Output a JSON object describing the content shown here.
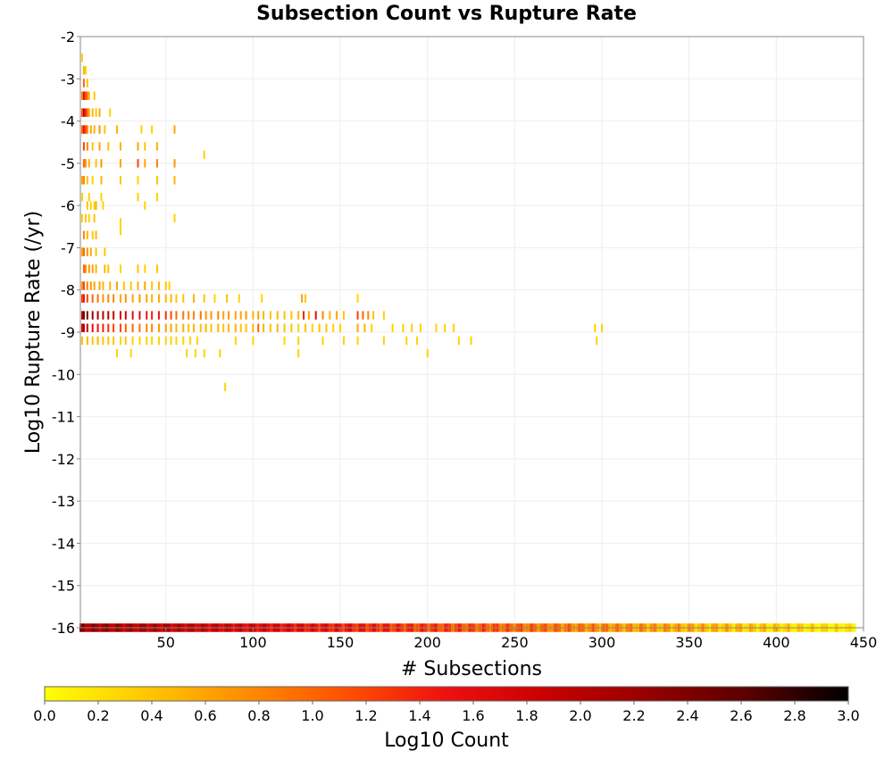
{
  "chart_data": {
    "type": "heatmap",
    "title": "Subsection Count vs Rupture Rate",
    "xlabel": "# Subsections",
    "ylabel": "Log10 Rupture Rate (/yr)",
    "xlim": [
      1,
      450
    ],
    "ylim": [
      -16,
      -2
    ],
    "x_ticks": [
      "50",
      "100",
      "150",
      "200",
      "250",
      "300",
      "350",
      "400",
      "450"
    ],
    "y_ticks": [
      "-2",
      "-3",
      "-4",
      "-5",
      "-6",
      "-7",
      "-8",
      "-9",
      "-10",
      "-11",
      "-12",
      "-13",
      "-14",
      "-15",
      "-16"
    ],
    "grid": true,
    "colorbar": {
      "label": "Log10 Count",
      "min": 0.0,
      "max": 3.0,
      "ticks": [
        "0.0",
        "0.2",
        "0.4",
        "0.6",
        "0.8",
        "1.0",
        "1.2",
        "1.4",
        "1.6",
        "1.8",
        "2.0",
        "2.2",
        "2.4",
        "2.6",
        "2.8",
        "3.0"
      ],
      "colors": [
        "#ffff00",
        "#ffc800",
        "#ff8c00",
        "#ff5000",
        "#ee1010",
        "#c80000",
        "#960000",
        "#5a0000",
        "#000000"
      ]
    },
    "bin_width": 1,
    "bin_height": 0.2,
    "cells": [
      [
        2,
        -2.5,
        0.3
      ],
      [
        3,
        -2.8,
        0.5
      ],
      [
        4,
        -2.8,
        0.3
      ],
      [
        3,
        -3.1,
        1.0
      ],
      [
        5,
        -3.1,
        0.4
      ],
      [
        2,
        -3.4,
        0.8
      ],
      [
        3,
        -3.4,
        1.6
      ],
      [
        4,
        -3.4,
        1.2
      ],
      [
        5,
        -3.4,
        0.9
      ],
      [
        6,
        -3.4,
        0.5
      ],
      [
        9,
        -3.4,
        0.4
      ],
      [
        2,
        -3.8,
        1.1
      ],
      [
        3,
        -3.8,
        1.9
      ],
      [
        4,
        -3.8,
        1.4
      ],
      [
        5,
        -3.8,
        1.0
      ],
      [
        6,
        -3.8,
        0.6
      ],
      [
        8,
        -3.8,
        0.5
      ],
      [
        10,
        -3.8,
        0.4
      ],
      [
        12,
        -3.8,
        0.6
      ],
      [
        18,
        -3.8,
        0.3
      ],
      [
        2,
        -4.2,
        1.0
      ],
      [
        3,
        -4.2,
        1.5
      ],
      [
        4,
        -4.2,
        1.2
      ],
      [
        5,
        -4.2,
        0.8
      ],
      [
        7,
        -4.2,
        0.6
      ],
      [
        9,
        -4.2,
        0.5
      ],
      [
        12,
        -4.2,
        0.7
      ],
      [
        15,
        -4.2,
        0.4
      ],
      [
        22,
        -4.2,
        0.5
      ],
      [
        36,
        -4.2,
        0.3
      ],
      [
        42,
        -4.2,
        0.3
      ],
      [
        55,
        -4.2,
        0.6
      ],
      [
        3,
        -4.6,
        1.2
      ],
      [
        5,
        -4.6,
        0.8
      ],
      [
        8,
        -4.6,
        0.4
      ],
      [
        12,
        -4.6,
        0.6
      ],
      [
        17,
        -4.6,
        0.4
      ],
      [
        24,
        -4.6,
        0.5
      ],
      [
        34,
        -4.6,
        0.6
      ],
      [
        38,
        -4.6,
        0.4
      ],
      [
        45,
        -4.6,
        0.5
      ],
      [
        3,
        -5.0,
        1.0
      ],
      [
        4,
        -5.0,
        0.7
      ],
      [
        6,
        -5.0,
        0.5
      ],
      [
        10,
        -5.0,
        0.4
      ],
      [
        13,
        -5.0,
        0.7
      ],
      [
        24,
        -5.0,
        0.6
      ],
      [
        34,
        -5.0,
        1.2
      ],
      [
        38,
        -5.0,
        0.6
      ],
      [
        45,
        -5.0,
        0.8
      ],
      [
        55,
        -5.0,
        0.7
      ],
      [
        72,
        -4.8,
        0.3
      ],
      [
        2,
        -5.4,
        0.6
      ],
      [
        3,
        -5.4,
        0.8
      ],
      [
        5,
        -5.4,
        0.4
      ],
      [
        8,
        -5.4,
        0.3
      ],
      [
        13,
        -5.4,
        0.5
      ],
      [
        24,
        -5.4,
        0.4
      ],
      [
        34,
        -5.4,
        0.3
      ],
      [
        45,
        -5.4,
        0.4
      ],
      [
        55,
        -5.4,
        0.5
      ],
      [
        2,
        -5.8,
        0.3
      ],
      [
        6,
        -5.8,
        0.3
      ],
      [
        13,
        -5.8,
        0.3
      ],
      [
        34,
        -5.8,
        0.3
      ],
      [
        45,
        -5.8,
        0.3
      ],
      [
        5,
        -6.0,
        0.4
      ],
      [
        7,
        -6.0,
        0.3
      ],
      [
        9,
        -6.0,
        0.3
      ],
      [
        10,
        -6.0,
        0.5
      ],
      [
        14,
        -6.0,
        0.3
      ],
      [
        38,
        -6.0,
        0.3
      ],
      [
        2,
        -6.3,
        0.3
      ],
      [
        4,
        -6.3,
        0.4
      ],
      [
        6,
        -6.3,
        0.3
      ],
      [
        9,
        -6.3,
        0.4
      ],
      [
        24,
        -6.4,
        0.3
      ],
      [
        55,
        -6.3,
        0.3
      ],
      [
        3,
        -6.7,
        0.8
      ],
      [
        5,
        -6.7,
        0.5
      ],
      [
        8,
        -6.7,
        0.4
      ],
      [
        10,
        -6.7,
        0.5
      ],
      [
        24,
        -6.6,
        0.3
      ],
      [
        2,
        -7.1,
        0.6
      ],
      [
        3,
        -7.1,
        1.0
      ],
      [
        5,
        -7.1,
        0.7
      ],
      [
        7,
        -7.1,
        0.6
      ],
      [
        10,
        -7.1,
        0.4
      ],
      [
        15,
        -7.1,
        0.4
      ],
      [
        3,
        -7.5,
        1.0
      ],
      [
        4,
        -7.5,
        0.8
      ],
      [
        6,
        -7.5,
        0.7
      ],
      [
        8,
        -7.5,
        0.6
      ],
      [
        10,
        -7.5,
        0.5
      ],
      [
        15,
        -7.5,
        0.5
      ],
      [
        17,
        -7.5,
        0.4
      ],
      [
        24,
        -7.5,
        0.3
      ],
      [
        34,
        -7.5,
        0.4
      ],
      [
        38,
        -7.5,
        0.3
      ],
      [
        45,
        -7.5,
        0.4
      ],
      [
        2,
        -7.9,
        0.7
      ],
      [
        3,
        -7.9,
        1.2
      ],
      [
        5,
        -7.9,
        0.8
      ],
      [
        7,
        -7.9,
        0.7
      ],
      [
        9,
        -7.9,
        0.6
      ],
      [
        12,
        -7.9,
        0.6
      ],
      [
        14,
        -7.9,
        0.5
      ],
      [
        18,
        -7.9,
        0.5
      ],
      [
        22,
        -7.9,
        0.6
      ],
      [
        26,
        -7.9,
        0.4
      ],
      [
        30,
        -7.9,
        0.4
      ],
      [
        34,
        -7.9,
        0.5
      ],
      [
        38,
        -7.9,
        0.6
      ],
      [
        42,
        -7.9,
        0.4
      ],
      [
        46,
        -7.9,
        0.5
      ],
      [
        50,
        -7.9,
        0.4
      ],
      [
        52,
        -7.9,
        0.3
      ],
      [
        2,
        -8.2,
        1.2
      ],
      [
        3,
        -8.2,
        1.5
      ],
      [
        5,
        -8.2,
        1.2
      ],
      [
        8,
        -8.2,
        1.0
      ],
      [
        11,
        -8.2,
        0.9
      ],
      [
        14,
        -8.2,
        0.7
      ],
      [
        17,
        -8.2,
        0.8
      ],
      [
        20,
        -8.2,
        0.8
      ],
      [
        24,
        -8.2,
        0.6
      ],
      [
        27,
        -8.2,
        0.7
      ],
      [
        31,
        -8.2,
        0.6
      ],
      [
        35,
        -8.2,
        0.7
      ],
      [
        39,
        -8.2,
        0.6
      ],
      [
        42,
        -8.2,
        0.5
      ],
      [
        46,
        -8.2,
        0.6
      ],
      [
        50,
        -8.2,
        0.5
      ],
      [
        53,
        -8.2,
        0.5
      ],
      [
        56,
        -8.2,
        0.4
      ],
      [
        60,
        -8.2,
        0.4
      ],
      [
        66,
        -8.2,
        0.5
      ],
      [
        72,
        -8.2,
        0.4
      ],
      [
        78,
        -8.2,
        0.3
      ],
      [
        85,
        -8.2,
        0.4
      ],
      [
        92,
        -8.2,
        0.3
      ],
      [
        105,
        -8.2,
        0.3
      ],
      [
        128,
        -8.2,
        0.6
      ],
      [
        130,
        -8.2,
        0.4
      ],
      [
        160,
        -8.2,
        0.3
      ],
      [
        2,
        -8.6,
        2.0
      ],
      [
        3,
        -8.6,
        2.6
      ],
      [
        5,
        -8.6,
        2.4
      ],
      [
        8,
        -8.6,
        2.2
      ],
      [
        11,
        -8.6,
        2.1
      ],
      [
        14,
        -8.6,
        2.0
      ],
      [
        17,
        -8.6,
        2.0
      ],
      [
        20,
        -8.6,
        1.9
      ],
      [
        24,
        -8.6,
        1.8
      ],
      [
        27,
        -8.6,
        1.8
      ],
      [
        31,
        -8.6,
        1.6
      ],
      [
        35,
        -8.6,
        1.6
      ],
      [
        39,
        -8.6,
        1.5
      ],
      [
        42,
        -8.6,
        1.4
      ],
      [
        46,
        -8.6,
        1.5
      ],
      [
        50,
        -8.6,
        1.3
      ],
      [
        53,
        -8.6,
        1.2
      ],
      [
        56,
        -8.6,
        1.0
      ],
      [
        60,
        -8.6,
        0.9
      ],
      [
        63,
        -8.6,
        0.8
      ],
      [
        66,
        -8.6,
        0.8
      ],
      [
        70,
        -8.6,
        0.9
      ],
      [
        73,
        -8.6,
        0.7
      ],
      [
        76,
        -8.6,
        0.7
      ],
      [
        80,
        -8.6,
        0.8
      ],
      [
        83,
        -8.6,
        0.6
      ],
      [
        86,
        -8.6,
        0.7
      ],
      [
        90,
        -8.6,
        0.6
      ],
      [
        93,
        -8.6,
        0.6
      ],
      [
        96,
        -8.6,
        0.7
      ],
      [
        100,
        -8.6,
        0.5
      ],
      [
        103,
        -8.6,
        0.6
      ],
      [
        106,
        -8.6,
        0.5
      ],
      [
        110,
        -8.6,
        0.4
      ],
      [
        114,
        -8.6,
        0.5
      ],
      [
        118,
        -8.6,
        0.4
      ],
      [
        122,
        -8.6,
        0.4
      ],
      [
        126,
        -8.6,
        0.5
      ],
      [
        129,
        -8.6,
        1.4
      ],
      [
        132,
        -8.6,
        0.6
      ],
      [
        136,
        -8.6,
        1.6
      ],
      [
        140,
        -8.6,
        0.8
      ],
      [
        144,
        -8.6,
        0.5
      ],
      [
        148,
        -8.6,
        0.6
      ],
      [
        152,
        -8.6,
        0.4
      ],
      [
        160,
        -8.6,
        1.2
      ],
      [
        163,
        -8.6,
        1.0
      ],
      [
        166,
        -8.6,
        0.8
      ],
      [
        169,
        -8.6,
        0.4
      ],
      [
        175,
        -8.6,
        0.3
      ],
      [
        2,
        -8.9,
        1.8
      ],
      [
        3,
        -8.9,
        2.0
      ],
      [
        5,
        -8.9,
        1.8
      ],
      [
        8,
        -8.9,
        1.6
      ],
      [
        11,
        -8.9,
        1.5
      ],
      [
        14,
        -8.9,
        1.4
      ],
      [
        17,
        -8.9,
        1.3
      ],
      [
        20,
        -8.9,
        1.2
      ],
      [
        24,
        -8.9,
        1.2
      ],
      [
        27,
        -8.9,
        1.0
      ],
      [
        31,
        -8.9,
        1.0
      ],
      [
        35,
        -8.9,
        0.9
      ],
      [
        39,
        -8.9,
        0.8
      ],
      [
        42,
        -8.9,
        0.8
      ],
      [
        46,
        -8.9,
        0.7
      ],
      [
        50,
        -8.9,
        0.6
      ],
      [
        53,
        -8.9,
        0.6
      ],
      [
        56,
        -8.9,
        0.5
      ],
      [
        60,
        -8.9,
        0.5
      ],
      [
        63,
        -8.9,
        0.4
      ],
      [
        66,
        -8.9,
        0.5
      ],
      [
        70,
        -8.9,
        0.4
      ],
      [
        73,
        -8.9,
        0.5
      ],
      [
        76,
        -8.9,
        0.4
      ],
      [
        80,
        -8.9,
        0.5
      ],
      [
        83,
        -8.9,
        0.4
      ],
      [
        86,
        -8.9,
        0.5
      ],
      [
        90,
        -8.9,
        0.5
      ],
      [
        93,
        -8.9,
        0.4
      ],
      [
        96,
        -8.9,
        0.4
      ],
      [
        100,
        -8.9,
        0.5
      ],
      [
        103,
        -8.9,
        1.0
      ],
      [
        106,
        -8.9,
        0.5
      ],
      [
        110,
        -8.9,
        0.4
      ],
      [
        114,
        -8.9,
        0.5
      ],
      [
        118,
        -8.9,
        0.4
      ],
      [
        122,
        -8.9,
        0.4
      ],
      [
        126,
        -8.9,
        0.3
      ],
      [
        130,
        -8.9,
        0.4
      ],
      [
        134,
        -8.9,
        0.3
      ],
      [
        138,
        -8.9,
        0.4
      ],
      [
        142,
        -8.9,
        0.4
      ],
      [
        146,
        -8.9,
        0.3
      ],
      [
        150,
        -8.9,
        0.3
      ],
      [
        160,
        -8.9,
        0.6
      ],
      [
        164,
        -8.9,
        0.5
      ],
      [
        168,
        -8.9,
        0.3
      ],
      [
        180,
        -8.9,
        0.3
      ],
      [
        186,
        -8.9,
        0.3
      ],
      [
        191,
        -8.9,
        0.3
      ],
      [
        196,
        -8.9,
        0.3
      ],
      [
        205,
        -8.9,
        0.3
      ],
      [
        210,
        -8.9,
        0.3
      ],
      [
        215,
        -8.9,
        0.3
      ],
      [
        296,
        -8.9,
        0.3
      ],
      [
        300,
        -8.9,
        0.3
      ],
      [
        2,
        -9.2,
        0.4
      ],
      [
        5,
        -9.2,
        0.5
      ],
      [
        8,
        -9.2,
        0.4
      ],
      [
        11,
        -9.2,
        0.5
      ],
      [
        14,
        -9.2,
        0.4
      ],
      [
        17,
        -9.2,
        0.4
      ],
      [
        20,
        -9.2,
        0.4
      ],
      [
        24,
        -9.2,
        0.3
      ],
      [
        27,
        -9.2,
        0.4
      ],
      [
        31,
        -9.2,
        0.3
      ],
      [
        35,
        -9.2,
        0.3
      ],
      [
        39,
        -9.2,
        0.3
      ],
      [
        42,
        -9.2,
        0.3
      ],
      [
        46,
        -9.2,
        0.3
      ],
      [
        50,
        -9.2,
        0.3
      ],
      [
        53,
        -9.2,
        0.3
      ],
      [
        56,
        -9.2,
        0.3
      ],
      [
        60,
        -9.2,
        0.3
      ],
      [
        64,
        -9.2,
        0.3
      ],
      [
        68,
        -9.2,
        0.3
      ],
      [
        90,
        -9.2,
        0.3
      ],
      [
        100,
        -9.2,
        0.3
      ],
      [
        118,
        -9.2,
        0.3
      ],
      [
        126,
        -9.2,
        0.3
      ],
      [
        140,
        -9.2,
        0.3
      ],
      [
        152,
        -9.2,
        0.3
      ],
      [
        160,
        -9.2,
        0.3
      ],
      [
        175,
        -9.2,
        0.3
      ],
      [
        188,
        -9.2,
        0.3
      ],
      [
        194,
        -9.2,
        0.3
      ],
      [
        218,
        -9.2,
        0.3
      ],
      [
        225,
        -9.2,
        0.3
      ],
      [
        297,
        -9.2,
        0.3
      ],
      [
        22,
        -9.5,
        0.3
      ],
      [
        30,
        -9.5,
        0.3
      ],
      [
        62,
        -9.5,
        0.3
      ],
      [
        67,
        -9.5,
        0.3
      ],
      [
        72,
        -9.5,
        0.3
      ],
      [
        81,
        -9.5,
        0.3
      ],
      [
        126,
        -9.5,
        0.3
      ],
      [
        200,
        -9.5,
        0.3
      ],
      [
        84,
        -10.3,
        0.3
      ]
    ]
  }
}
